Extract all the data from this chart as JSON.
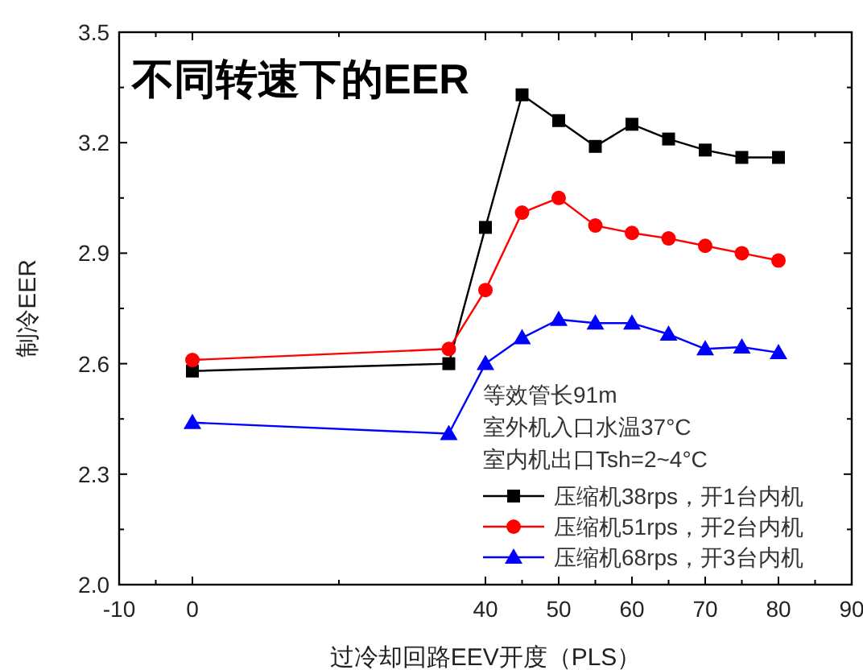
{
  "chart_data": {
    "type": "line",
    "title": "不同转速下的EER",
    "xlabel": "过冷却回路EEV开度（PLS）",
    "ylabel": "制冷EER",
    "x": [
      0,
      35,
      40,
      45,
      50,
      55,
      60,
      65,
      70,
      75,
      80
    ],
    "xlim": [
      -10,
      90
    ],
    "xticks": [
      -10,
      0,
      40,
      50,
      60,
      70,
      80,
      90
    ],
    "ylim": [
      2.0,
      3.5
    ],
    "yticks": [
      {
        "value": 2.0,
        "label": "2.0"
      },
      2.3,
      2.6,
      2.9,
      3.2,
      3.5
    ],
    "grid": false,
    "legend": "bottom right",
    "line_style": "solid",
    "annotations": [
      "等效管长91m",
      "室外机入口水温37°C",
      "室内机出口Tsh=2~4°C"
    ],
    "series": [
      {
        "name": "压缩机38rps，开1台内机",
        "color": "#000000",
        "marker": "square",
        "values": [
          2.58,
          2.6,
          2.97,
          3.33,
          3.26,
          3.19,
          3.25,
          3.21,
          3.18,
          3.16,
          3.16
        ]
      },
      {
        "name": "压缩机51rps，开2台内机",
        "color": "#ff0000",
        "marker": "circle",
        "values": [
          2.61,
          2.64,
          2.8,
          3.01,
          3.05,
          2.975,
          2.955,
          2.94,
          2.92,
          2.9,
          2.88
        ]
      },
      {
        "name": "压缩机68rps，开3台内机",
        "color": "#0000ff",
        "marker": "triangle",
        "values": [
          2.44,
          2.41,
          2.6,
          2.67,
          2.72,
          2.71,
          2.71,
          2.68,
          2.64,
          2.645,
          2.63
        ]
      }
    ]
  }
}
